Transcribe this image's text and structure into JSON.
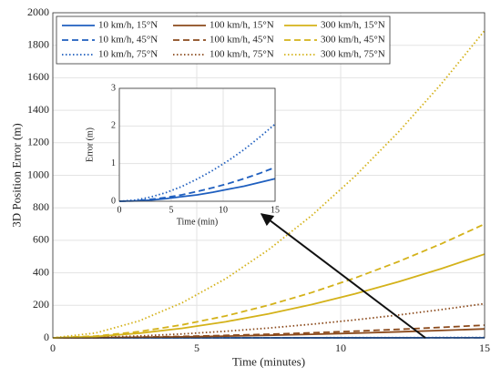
{
  "chart_data": [
    {
      "type": "line",
      "xlabel": "Time (minutes)",
      "ylabel": "3D Position Error (m)",
      "x": [
        0,
        1.5,
        3,
        4.5,
        6,
        7.5,
        9,
        10.5,
        12,
        13.5,
        15
      ],
      "xlim": [
        0,
        15
      ],
      "xticks": [
        0,
        5,
        10,
        15
      ],
      "ylim": [
        0,
        2000
      ],
      "yticks": [
        0,
        200,
        400,
        600,
        800,
        1000,
        1200,
        1400,
        1600,
        1800,
        2000
      ],
      "grid": true,
      "legend": "upper left",
      "series": [
        {
          "name": "10 km/h, 15°N",
          "color": "#1f5fbf",
          "style": "solid",
          "values": [
            0,
            0.01,
            0.03,
            0.07,
            0.12,
            0.17,
            0.24,
            0.32,
            0.4,
            0.5,
            0.6
          ]
        },
        {
          "name": "10 km/h, 45°N",
          "color": "#1f5fbf",
          "style": "dashed",
          "values": [
            0,
            0.01,
            0.05,
            0.1,
            0.17,
            0.26,
            0.36,
            0.47,
            0.6,
            0.74,
            0.9
          ]
        },
        {
          "name": "10 km/h, 75°N",
          "color": "#1f5fbf",
          "style": "dotted",
          "values": [
            0,
            0.03,
            0.11,
            0.23,
            0.39,
            0.59,
            0.82,
            1.08,
            1.37,
            1.7,
            2.05
          ]
        },
        {
          "name": "100 km/h, 15°N",
          "color": "#8b4a1c",
          "style": "solid",
          "values": [
            0,
            0.9,
            3,
            6.3,
            10.6,
            15.8,
            21.9,
            28.9,
            36.8,
            45.5,
            55
          ]
        },
        {
          "name": "100 km/h, 45°N",
          "color": "#8b4a1c",
          "style": "dashed",
          "values": [
            0,
            1.2,
            4.3,
            8.9,
            15,
            22.4,
            31.1,
            41,
            52.2,
            64.5,
            78
          ]
        },
        {
          "name": "100 km/h, 75°N",
          "color": "#8b4a1c",
          "style": "dotted",
          "values": [
            0,
            3.3,
            11.6,
            24,
            40.4,
            60.3,
            83.7,
            110.5,
            140.5,
            173.7,
            210
          ]
        },
        {
          "name": "300 km/h, 15°N",
          "color": "#d4b21a",
          "style": "solid",
          "values": [
            0,
            8.2,
            28.4,
            59,
            99,
            147.9,
            205.3,
            271,
            344.6,
            426,
            515
          ]
        },
        {
          "name": "300 km/h, 45°N",
          "color": "#d4b21a",
          "style": "dashed",
          "values": [
            0,
            11.1,
            38.6,
            80.2,
            134.5,
            201,
            279.1,
            368.3,
            468.4,
            579,
            700
          ]
        },
        {
          "name": "300 km/h, 75°N",
          "color": "#d4b21a",
          "style": "dotted",
          "values": [
            0,
            30,
            104.3,
            216.4,
            363.3,
            542.8,
            753.5,
            994.5,
            1264.8,
            1563.4,
            1890
          ]
        }
      ]
    },
    {
      "type": "line",
      "xlabel": "Time (min)",
      "ylabel": "Error (m)",
      "x": [
        0,
        1.5,
        3,
        4.5,
        6,
        7.5,
        9,
        10.5,
        12,
        13.5,
        15
      ],
      "xlim": [
        0,
        15
      ],
      "xticks": [
        0,
        5,
        10,
        15
      ],
      "ylim": [
        0,
        3
      ],
      "yticks": [
        0,
        1,
        2,
        3
      ],
      "grid": true,
      "series": [
        {
          "color": "#1f5fbf",
          "style": "solid",
          "values": [
            0,
            0.01,
            0.03,
            0.07,
            0.12,
            0.17,
            0.24,
            0.32,
            0.4,
            0.5,
            0.6
          ]
        },
        {
          "color": "#1f5fbf",
          "style": "dashed",
          "values": [
            0,
            0.01,
            0.05,
            0.1,
            0.17,
            0.26,
            0.36,
            0.47,
            0.6,
            0.74,
            0.9
          ]
        },
        {
          "color": "#1f5fbf",
          "style": "dotted",
          "values": [
            0,
            0.03,
            0.11,
            0.23,
            0.39,
            0.59,
            0.82,
            1.08,
            1.37,
            1.7,
            2.05
          ]
        }
      ]
    }
  ]
}
